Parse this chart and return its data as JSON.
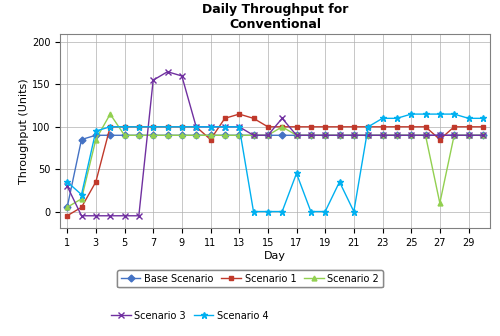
{
  "title": "Daily Throughput for\nConventional",
  "xlabel": "Day",
  "ylabel": "Throughput (Units)",
  "xlim": [
    0.5,
    30.5
  ],
  "ylim": [
    -20,
    210
  ],
  "yticks": [
    0,
    50,
    100,
    150,
    200
  ],
  "xticks": [
    1,
    3,
    5,
    7,
    9,
    11,
    13,
    15,
    17,
    19,
    21,
    23,
    25,
    27,
    29
  ],
  "days": [
    1,
    2,
    3,
    4,
    5,
    6,
    7,
    8,
    9,
    10,
    11,
    12,
    13,
    14,
    15,
    16,
    17,
    18,
    19,
    20,
    21,
    22,
    23,
    24,
    25,
    26,
    27,
    28,
    29,
    30
  ],
  "base_scenario": [
    5,
    85,
    90,
    90,
    90,
    90,
    90,
    90,
    90,
    90,
    90,
    90,
    90,
    90,
    90,
    90,
    90,
    90,
    90,
    90,
    90,
    90,
    90,
    90,
    90,
    90,
    90,
    90,
    90,
    90
  ],
  "scenario1": [
    -5,
    5,
    35,
    100,
    100,
    100,
    100,
    100,
    100,
    100,
    85,
    110,
    115,
    110,
    100,
    100,
    100,
    100,
    100,
    100,
    100,
    100,
    100,
    100,
    100,
    100,
    85,
    100,
    100,
    100
  ],
  "scenario2": [
    5,
    15,
    85,
    115,
    90,
    90,
    90,
    90,
    90,
    90,
    90,
    90,
    90,
    90,
    90,
    100,
    90,
    90,
    90,
    90,
    90,
    90,
    90,
    90,
    90,
    90,
    10,
    90,
    90,
    90
  ],
  "scenario3": [
    30,
    -5,
    -5,
    -5,
    -5,
    -5,
    155,
    165,
    160,
    100,
    100,
    100,
    100,
    90,
    90,
    110,
    90,
    90,
    90,
    90,
    90,
    90,
    90,
    90,
    90,
    90,
    90,
    90,
    90,
    90
  ],
  "scenario4": [
    35,
    20,
    95,
    100,
    100,
    100,
    100,
    100,
    100,
    100,
    100,
    100,
    100,
    0,
    0,
    0,
    45,
    0,
    0,
    35,
    0,
    100,
    110,
    110,
    115,
    115,
    115,
    115,
    110,
    110
  ],
  "base_color": "#4472C4",
  "s1_color": "#C0392B",
  "s2_color": "#92D050",
  "s3_color": "#7030A0",
  "s4_color": "#00B0F0",
  "grid_color": "#B0B0B0",
  "bg_color": "#FFFFFF"
}
